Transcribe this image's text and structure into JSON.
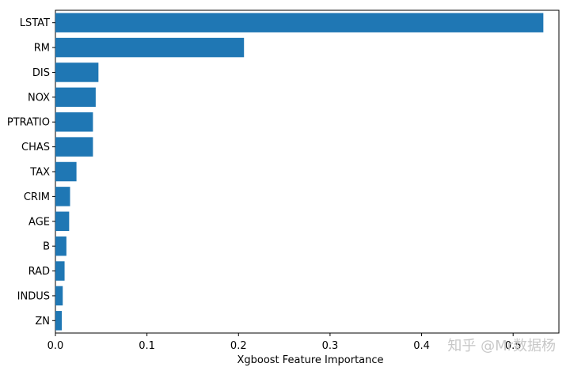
{
  "chart_data": {
    "type": "bar",
    "orientation": "horizontal",
    "categories": [
      "LSTAT",
      "RM",
      "DIS",
      "NOX",
      "PTRATIO",
      "CHAS",
      "TAX",
      "CRIM",
      "AGE",
      "B",
      "RAD",
      "INDUS",
      "ZN"
    ],
    "values": [
      0.533,
      0.206,
      0.047,
      0.044,
      0.041,
      0.041,
      0.023,
      0.016,
      0.015,
      0.012,
      0.01,
      0.008,
      0.007
    ],
    "xlabel": "Xgboost Feature Importance",
    "ylabel": "",
    "title": "",
    "xlim": [
      0,
      0.55
    ],
    "xticks": [
      0.0,
      0.1,
      0.2,
      0.3,
      0.4,
      0.5
    ],
    "xtick_labels": [
      "0.0",
      "0.1",
      "0.2",
      "0.3",
      "0.4",
      "0.5"
    ],
    "bar_color": "#1f77b4",
    "grid": false,
    "legend": "none"
  },
  "watermark": "知乎 @Mr数据杨"
}
